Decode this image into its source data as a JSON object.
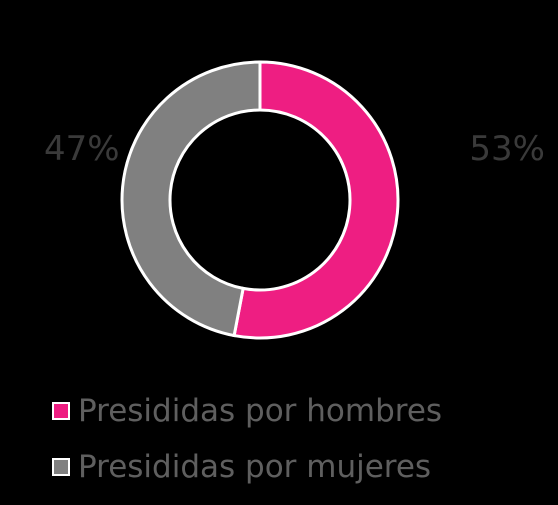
{
  "chart_data": {
    "type": "pie",
    "variant": "donut",
    "title": "",
    "slices": [
      {
        "label": "Presididas por hombres",
        "value": 53,
        "value_label": "53%",
        "color": "#ee1e82"
      },
      {
        "label": "Presididas por mujeres",
        "value": 47,
        "value_label": "47%",
        "color": "#808080"
      }
    ],
    "start": "top",
    "direction": "clockwise",
    "legend_placement": "bottom-left"
  },
  "colors": {
    "background": "#000000",
    "slice_border": "#ffffff",
    "percent_text": "#3a3a3a",
    "legend_text": "#5f5f5f"
  }
}
